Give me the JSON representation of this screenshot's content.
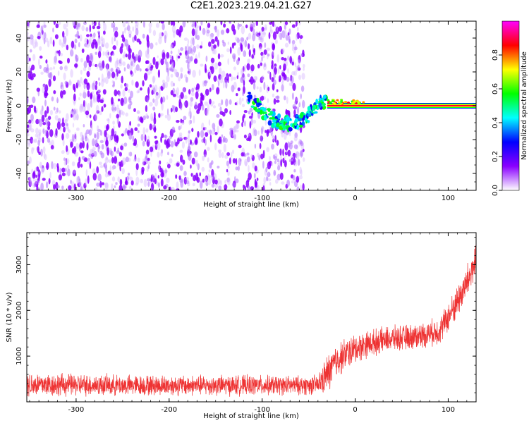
{
  "title": "C2E1.2023.219.04.21.G27",
  "chart_data": [
    {
      "type": "heatmap",
      "title": "C2E1.2023.219.04.21.G27",
      "xlabel": "Height of straight line (km)",
      "ylabel": "Frequency (Hz)",
      "xlim": [
        -353,
        130
      ],
      "ylim": [
        -50,
        50
      ],
      "x_ticks": [
        -300,
        -200,
        -100,
        0,
        100
      ],
      "y_ticks": [
        -40,
        -20,
        0,
        20,
        40
      ],
      "colorbar": {
        "label": "Normalized spectral amplitude",
        "range": [
          0,
          1
        ],
        "ticks": [
          0.0,
          0.2,
          0.4,
          0.6,
          0.8
        ],
        "colormap": [
          "#ffffff",
          "#8a00ff",
          "#0000ff",
          "#00ffff",
          "#00ff00",
          "#ffff00",
          "#ff0000",
          "#ff00ff"
        ]
      },
      "features": {
        "noise_region_x": [
          -353,
          -55
        ],
        "noise_amplitude": [
          0.1,
          0.25
        ],
        "transition_x": [
          -115,
          -30
        ],
        "transition_freq_hz": [
          -12,
          5
        ],
        "carrier_x": [
          -30,
          130
        ],
        "carrier_freq_hz": 0,
        "carrier_amplitude": 0.9
      }
    },
    {
      "type": "line",
      "xlabel": "Height of straight line (km)",
      "ylabel": "SNR (10 * v/v)",
      "xlim": [
        -353,
        130
      ],
      "ylim": [
        0,
        3700
      ],
      "x_ticks": [
        -300,
        -200,
        -100,
        0,
        100
      ],
      "y_ticks": [
        1000,
        2000,
        3000
      ],
      "color": "#ee3333",
      "series": [
        {
          "x": [
            -353,
            -300,
            -250,
            -200,
            -150,
            -100,
            -60,
            -40,
            -30,
            -20,
            -10,
            0,
            10,
            20,
            30,
            40,
            50,
            60,
            70,
            80,
            90,
            100,
            110,
            120,
            130
          ],
          "values": [
            380,
            370,
            360,
            360,
            360,
            360,
            360,
            370,
            600,
            900,
            1050,
            1150,
            1250,
            1300,
            1350,
            1380,
            1400,
            1420,
            1450,
            1500,
            1550,
            1850,
            2200,
            2600,
            3100
          ],
          "spread": [
            320,
            280,
            260,
            260,
            260,
            250,
            240,
            250,
            500,
            450,
            400,
            380,
            350,
            330,
            320,
            320,
            320,
            320,
            330,
            330,
            350,
            380,
            420,
            450,
            500
          ]
        }
      ]
    }
  ]
}
